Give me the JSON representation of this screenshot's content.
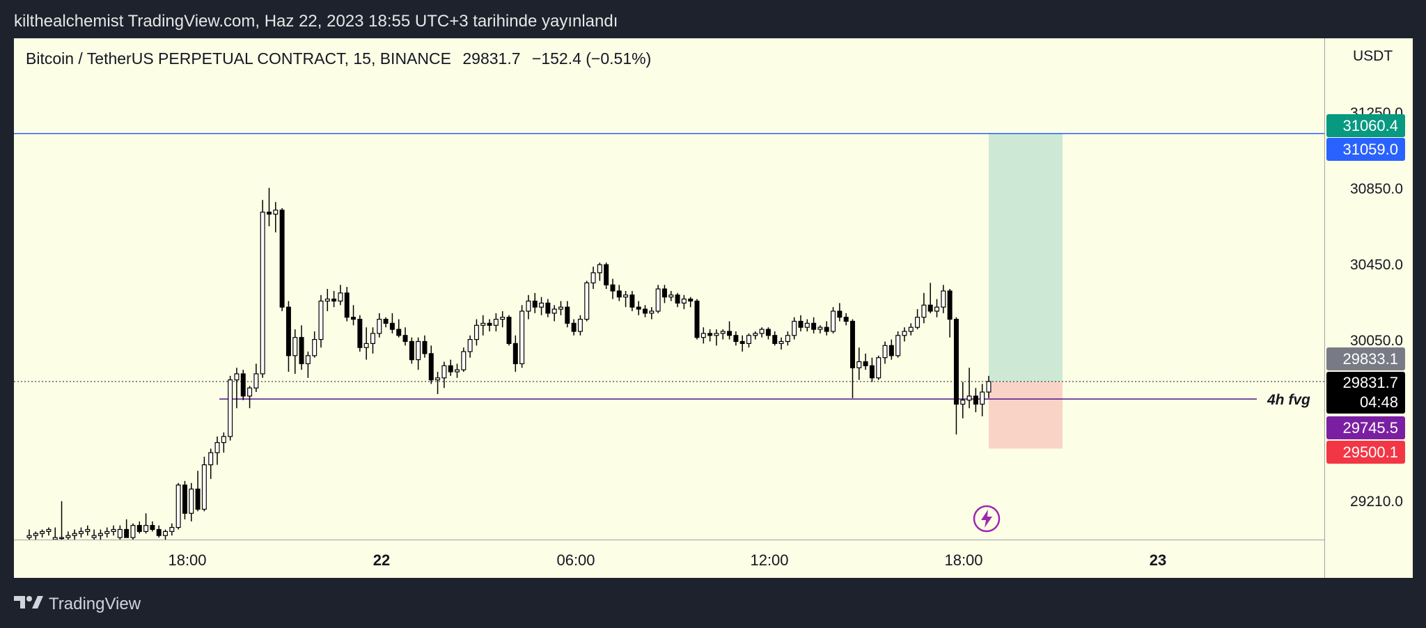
{
  "header": {
    "publish_line": "kilthealchemist TradingView.com, Haz 22, 2023 18:55 UTC+3 tarihinde yayınlandı"
  },
  "legend": {
    "symbol": "Bitcoin / TetherUS PERPETUAL CONTRACT, 15, BINANCE",
    "last": "29831.7",
    "change": "−152.4 (−0.51%)"
  },
  "price_scale": {
    "currency": "USDT",
    "ticks": [
      "31250.0",
      "30850.0",
      "30450.0",
      "30050.0",
      "29210.0"
    ],
    "badges": {
      "target": "31060.4",
      "blue_line": "31059.0",
      "prev_close": "29833.1",
      "last": "29831.7",
      "countdown": "04:48",
      "fvg": "29745.5",
      "stop": "29500.1"
    }
  },
  "time_axis": {
    "labels": [
      "18:00",
      "22",
      "06:00",
      "12:00",
      "18:00",
      "23"
    ]
  },
  "annotations": {
    "fvg_label": "4h fvg"
  },
  "colors": {
    "background": "#fdfee6",
    "frame": "#1e222d",
    "blue_line": "#2962ff",
    "fvg_line": "#4a148c",
    "profit_zone": "#cde9d6",
    "loss_zone": "#f9d4c6",
    "target_badge": "#089981",
    "stop_badge": "#f23645",
    "fvg_badge": "#7b1fa2",
    "prev_badge": "#787b86",
    "last_badge": "#000000"
  },
  "footer": {
    "brand": "TradingView",
    "logo_icon": "tradingview-logo-icon"
  },
  "chart_data": {
    "type": "candlestick",
    "timeframe": "15",
    "y_range": [
      29050,
      31530
    ],
    "horizontal_lines": [
      31059.0,
      29745.5
    ],
    "position": {
      "entry": 29831.7,
      "target": 31060.4,
      "stop": 29500.1
    },
    "candles": [
      {
        "o": 29060,
        "h": 29100,
        "l": 29040,
        "c": 29070
      },
      {
        "o": 29070,
        "h": 29090,
        "l": 29050,
        "c": 29080
      },
      {
        "o": 29080,
        "h": 29100,
        "l": 29060,
        "c": 29090
      },
      {
        "o": 29090,
        "h": 29110,
        "l": 29070,
        "c": 29100
      },
      {
        "o": 29050,
        "h": 29110,
        "l": 29020,
        "c": 29060
      },
      {
        "o": 29060,
        "h": 29240,
        "l": 29030,
        "c": 29060
      },
      {
        "o": 29060,
        "h": 29090,
        "l": 29040,
        "c": 29070
      },
      {
        "o": 29070,
        "h": 29100,
        "l": 29050,
        "c": 29080
      },
      {
        "o": 29080,
        "h": 29110,
        "l": 29060,
        "c": 29090
      },
      {
        "o": 29090,
        "h": 29120,
        "l": 29070,
        "c": 29100
      },
      {
        "o": 29060,
        "h": 29100,
        "l": 29030,
        "c": 29070
      },
      {
        "o": 29070,
        "h": 29100,
        "l": 29050,
        "c": 29080
      },
      {
        "o": 29080,
        "h": 29110,
        "l": 29060,
        "c": 29090
      },
      {
        "o": 29090,
        "h": 29120,
        "l": 29070,
        "c": 29100
      },
      {
        "o": 29060,
        "h": 29120,
        "l": 29040,
        "c": 29100
      },
      {
        "o": 29100,
        "h": 29150,
        "l": 29080,
        "c": 29060
      },
      {
        "o": 29060,
        "h": 29130,
        "l": 29050,
        "c": 29120
      },
      {
        "o": 29120,
        "h": 29140,
        "l": 29080,
        "c": 29090
      },
      {
        "o": 29090,
        "h": 29180,
        "l": 29080,
        "c": 29120
      },
      {
        "o": 29120,
        "h": 29140,
        "l": 29090,
        "c": 29100
      },
      {
        "o": 29100,
        "h": 29120,
        "l": 29060,
        "c": 29070
      },
      {
        "o": 29070,
        "h": 29100,
        "l": 29040,
        "c": 29090
      },
      {
        "o": 29090,
        "h": 29130,
        "l": 29070,
        "c": 29110
      },
      {
        "o": 29110,
        "h": 29330,
        "l": 29100,
        "c": 29320
      },
      {
        "o": 29320,
        "h": 29340,
        "l": 29150,
        "c": 29180
      },
      {
        "o": 29180,
        "h": 29330,
        "l": 29140,
        "c": 29300
      },
      {
        "o": 29300,
        "h": 29390,
        "l": 29190,
        "c": 29200
      },
      {
        "o": 29200,
        "h": 29460,
        "l": 29190,
        "c": 29420
      },
      {
        "o": 29420,
        "h": 29500,
        "l": 29350,
        "c": 29480
      },
      {
        "o": 29480,
        "h": 29560,
        "l": 29420,
        "c": 29530
      },
      {
        "o": 29530,
        "h": 29580,
        "l": 29480,
        "c": 29560
      },
      {
        "o": 29560,
        "h": 29860,
        "l": 29540,
        "c": 29840
      },
      {
        "o": 29840,
        "h": 29900,
        "l": 29700,
        "c": 29870
      },
      {
        "o": 29870,
        "h": 29890,
        "l": 29740,
        "c": 29760
      },
      {
        "o": 29760,
        "h": 29810,
        "l": 29700,
        "c": 29800
      },
      {
        "o": 29800,
        "h": 29920,
        "l": 29780,
        "c": 29870
      },
      {
        "o": 29870,
        "h": 30730,
        "l": 29850,
        "c": 30670
      },
      {
        "o": 30670,
        "h": 30790,
        "l": 30600,
        "c": 30660
      },
      {
        "o": 30660,
        "h": 30720,
        "l": 30570,
        "c": 30680
      },
      {
        "o": 30680,
        "h": 30690,
        "l": 30180,
        "c": 30200
      },
      {
        "o": 30200,
        "h": 30230,
        "l": 29880,
        "c": 29960
      },
      {
        "o": 29960,
        "h": 30090,
        "l": 29870,
        "c": 30050
      },
      {
        "o": 30050,
        "h": 30110,
        "l": 29890,
        "c": 29920
      },
      {
        "o": 29920,
        "h": 29980,
        "l": 29850,
        "c": 29960
      },
      {
        "o": 29960,
        "h": 30080,
        "l": 29950,
        "c": 30040
      },
      {
        "o": 30040,
        "h": 30260,
        "l": 30000,
        "c": 30230
      },
      {
        "o": 30230,
        "h": 30290,
        "l": 30180,
        "c": 30240
      },
      {
        "o": 30240,
        "h": 30280,
        "l": 30200,
        "c": 30230
      },
      {
        "o": 30230,
        "h": 30310,
        "l": 30210,
        "c": 30270
      },
      {
        "o": 30270,
        "h": 30300,
        "l": 30130,
        "c": 30150
      },
      {
        "o": 30150,
        "h": 30210,
        "l": 30110,
        "c": 30140
      },
      {
        "o": 30140,
        "h": 30160,
        "l": 29980,
        "c": 30000
      },
      {
        "o": 30000,
        "h": 30100,
        "l": 29940,
        "c": 30020
      },
      {
        "o": 30020,
        "h": 30100,
        "l": 29970,
        "c": 30070
      },
      {
        "o": 30070,
        "h": 30170,
        "l": 30050,
        "c": 30140
      },
      {
        "o": 30140,
        "h": 30150,
        "l": 30100,
        "c": 30120
      },
      {
        "o": 30120,
        "h": 30170,
        "l": 30070,
        "c": 30090
      },
      {
        "o": 30090,
        "h": 30140,
        "l": 30050,
        "c": 30060
      },
      {
        "o": 30060,
        "h": 30100,
        "l": 30010,
        "c": 30030
      },
      {
        "o": 30030,
        "h": 30050,
        "l": 29920,
        "c": 29940
      },
      {
        "o": 29940,
        "h": 30050,
        "l": 29890,
        "c": 30030
      },
      {
        "o": 30030,
        "h": 30060,
        "l": 29950,
        "c": 29970
      },
      {
        "o": 29970,
        "h": 30010,
        "l": 29820,
        "c": 29840
      },
      {
        "o": 29840,
        "h": 29880,
        "l": 29770,
        "c": 29850
      },
      {
        "o": 29850,
        "h": 29930,
        "l": 29800,
        "c": 29910
      },
      {
        "o": 29910,
        "h": 29940,
        "l": 29860,
        "c": 29880
      },
      {
        "o": 29880,
        "h": 29920,
        "l": 29850,
        "c": 29890
      },
      {
        "o": 29890,
        "h": 30000,
        "l": 29880,
        "c": 29980
      },
      {
        "o": 29980,
        "h": 30060,
        "l": 29950,
        "c": 30040
      },
      {
        "o": 30040,
        "h": 30140,
        "l": 30010,
        "c": 30110
      },
      {
        "o": 30110,
        "h": 30160,
        "l": 30060,
        "c": 30120
      },
      {
        "o": 30120,
        "h": 30140,
        "l": 30080,
        "c": 30110
      },
      {
        "o": 30110,
        "h": 30170,
        "l": 30080,
        "c": 30140
      },
      {
        "o": 30140,
        "h": 30180,
        "l": 30100,
        "c": 30150
      },
      {
        "o": 30150,
        "h": 30160,
        "l": 30010,
        "c": 30020
      },
      {
        "o": 30020,
        "h": 30060,
        "l": 29880,
        "c": 29920
      },
      {
        "o": 29920,
        "h": 30210,
        "l": 29900,
        "c": 30180
      },
      {
        "o": 30180,
        "h": 30260,
        "l": 30140,
        "c": 30230
      },
      {
        "o": 30230,
        "h": 30270,
        "l": 30170,
        "c": 30200
      },
      {
        "o": 30200,
        "h": 30250,
        "l": 30160,
        "c": 30220
      },
      {
        "o": 30220,
        "h": 30240,
        "l": 30150,
        "c": 30170
      },
      {
        "o": 30170,
        "h": 30210,
        "l": 30130,
        "c": 30190
      },
      {
        "o": 30190,
        "h": 30230,
        "l": 30160,
        "c": 30200
      },
      {
        "o": 30200,
        "h": 30230,
        "l": 30100,
        "c": 30120
      },
      {
        "o": 30120,
        "h": 30140,
        "l": 30060,
        "c": 30080
      },
      {
        "o": 30080,
        "h": 30160,
        "l": 30060,
        "c": 30140
      },
      {
        "o": 30140,
        "h": 30330,
        "l": 30130,
        "c": 30320
      },
      {
        "o": 30320,
        "h": 30400,
        "l": 30290,
        "c": 30370
      },
      {
        "o": 30370,
        "h": 30420,
        "l": 30330,
        "c": 30410
      },
      {
        "o": 30410,
        "h": 30420,
        "l": 30290,
        "c": 30310
      },
      {
        "o": 30310,
        "h": 30340,
        "l": 30240,
        "c": 30280
      },
      {
        "o": 30280,
        "h": 30310,
        "l": 30230,
        "c": 30250
      },
      {
        "o": 30250,
        "h": 30280,
        "l": 30200,
        "c": 30260
      },
      {
        "o": 30260,
        "h": 30280,
        "l": 30180,
        "c": 30200
      },
      {
        "o": 30200,
        "h": 30230,
        "l": 30160,
        "c": 30190
      },
      {
        "o": 30190,
        "h": 30210,
        "l": 30150,
        "c": 30170
      },
      {
        "o": 30170,
        "h": 30200,
        "l": 30140,
        "c": 30180
      },
      {
        "o": 30180,
        "h": 30310,
        "l": 30170,
        "c": 30290
      },
      {
        "o": 30290,
        "h": 30310,
        "l": 30220,
        "c": 30250
      },
      {
        "o": 30250,
        "h": 30280,
        "l": 30230,
        "c": 30260
      },
      {
        "o": 30260,
        "h": 30270,
        "l": 30200,
        "c": 30220
      },
      {
        "o": 30220,
        "h": 30260,
        "l": 30190,
        "c": 30240
      },
      {
        "o": 30240,
        "h": 30250,
        "l": 30200,
        "c": 30230
      },
      {
        "o": 30230,
        "h": 30240,
        "l": 30040,
        "c": 30050
      },
      {
        "o": 30050,
        "h": 30100,
        "l": 30020,
        "c": 30070
      },
      {
        "o": 30070,
        "h": 30090,
        "l": 30030,
        "c": 30060
      },
      {
        "o": 30060,
        "h": 30090,
        "l": 30010,
        "c": 30070
      },
      {
        "o": 30070,
        "h": 30090,
        "l": 30040,
        "c": 30080
      },
      {
        "o": 30080,
        "h": 30130,
        "l": 30040,
        "c": 30060
      },
      {
        "o": 30060,
        "h": 30080,
        "l": 30010,
        "c": 30030
      },
      {
        "o": 30030,
        "h": 30060,
        "l": 29980,
        "c": 30020
      },
      {
        "o": 30020,
        "h": 30070,
        "l": 30000,
        "c": 30060
      },
      {
        "o": 30060,
        "h": 30080,
        "l": 30040,
        "c": 30070
      },
      {
        "o": 30070,
        "h": 30100,
        "l": 30050,
        "c": 30090
      },
      {
        "o": 30090,
        "h": 30100,
        "l": 30040,
        "c": 30060
      },
      {
        "o": 30060,
        "h": 30080,
        "l": 30010,
        "c": 30020
      },
      {
        "o": 30020,
        "h": 30050,
        "l": 29990,
        "c": 30030
      },
      {
        "o": 30030,
        "h": 30080,
        "l": 30010,
        "c": 30060
      },
      {
        "o": 30060,
        "h": 30150,
        "l": 30040,
        "c": 30130
      },
      {
        "o": 30130,
        "h": 30160,
        "l": 30080,
        "c": 30100
      },
      {
        "o": 30100,
        "h": 30140,
        "l": 30080,
        "c": 30120
      },
      {
        "o": 30120,
        "h": 30150,
        "l": 30070,
        "c": 30090
      },
      {
        "o": 30090,
        "h": 30110,
        "l": 30070,
        "c": 30100
      },
      {
        "o": 30100,
        "h": 30130,
        "l": 30060,
        "c": 30080
      },
      {
        "o": 30080,
        "h": 30200,
        "l": 30070,
        "c": 30180
      },
      {
        "o": 30180,
        "h": 30220,
        "l": 30130,
        "c": 30150
      },
      {
        "o": 30150,
        "h": 30170,
        "l": 30110,
        "c": 30130
      },
      {
        "o": 30130,
        "h": 30140,
        "l": 29750,
        "c": 29900
      },
      {
        "o": 29900,
        "h": 30000,
        "l": 29840,
        "c": 29930
      },
      {
        "o": 29930,
        "h": 29970,
        "l": 29890,
        "c": 29910
      },
      {
        "o": 29910,
        "h": 29950,
        "l": 29830,
        "c": 29850
      },
      {
        "o": 29850,
        "h": 29960,
        "l": 29840,
        "c": 29950
      },
      {
        "o": 29950,
        "h": 30030,
        "l": 29920,
        "c": 30010
      },
      {
        "o": 30010,
        "h": 30040,
        "l": 29940,
        "c": 29960
      },
      {
        "o": 29960,
        "h": 30080,
        "l": 29950,
        "c": 30060
      },
      {
        "o": 30060,
        "h": 30100,
        "l": 30030,
        "c": 30080
      },
      {
        "o": 30080,
        "h": 30120,
        "l": 30060,
        "c": 30100
      },
      {
        "o": 30100,
        "h": 30190,
        "l": 30090,
        "c": 30150
      },
      {
        "o": 30150,
        "h": 30270,
        "l": 30120,
        "c": 30210
      },
      {
        "o": 30210,
        "h": 30320,
        "l": 30170,
        "c": 30180
      },
      {
        "o": 30180,
        "h": 30240,
        "l": 30150,
        "c": 30200
      },
      {
        "o": 30200,
        "h": 30310,
        "l": 30170,
        "c": 30280
      },
      {
        "o": 30280,
        "h": 30290,
        "l": 30050,
        "c": 30140
      },
      {
        "o": 30140,
        "h": 30150,
        "l": 29570,
        "c": 29720
      },
      {
        "o": 29720,
        "h": 29830,
        "l": 29650,
        "c": 29740
      },
      {
        "o": 29740,
        "h": 29900,
        "l": 29700,
        "c": 29760
      },
      {
        "o": 29760,
        "h": 29800,
        "l": 29680,
        "c": 29720
      },
      {
        "o": 29720,
        "h": 29820,
        "l": 29660,
        "c": 29780
      },
      {
        "o": 29780,
        "h": 29860,
        "l": 29750,
        "c": 29832
      }
    ]
  }
}
